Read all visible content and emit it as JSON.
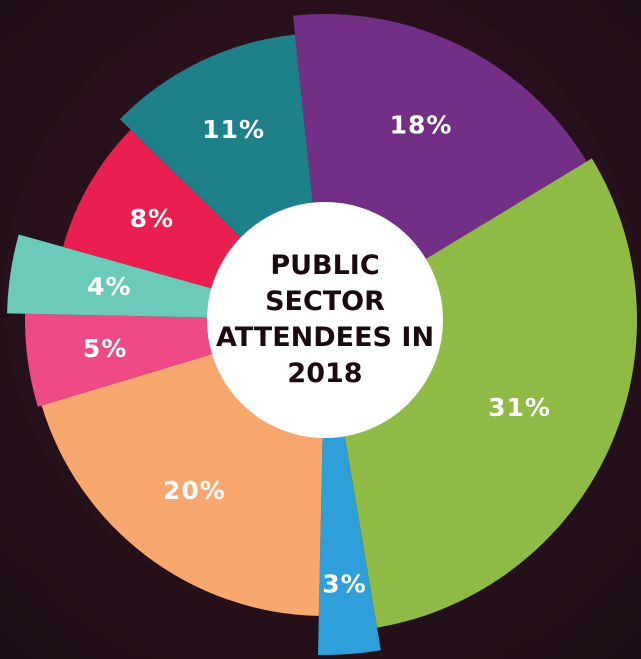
{
  "chart_data": {
    "type": "pie",
    "title": "PUBLIC SECTOR ATTENDEES IN 2018",
    "categories": [
      null,
      null,
      null,
      null,
      null,
      null,
      null,
      null
    ],
    "values": [
      18,
      31,
      3,
      20,
      5,
      4,
      8,
      11
    ],
    "value_labels": [
      "18%",
      "31%",
      "3%",
      "20%",
      "5%",
      "4%",
      "8%",
      "11%"
    ],
    "colors": [
      "#722f85",
      "#8fba45",
      "#2e9fd9",
      "#f8a76e",
      "#ee4a86",
      "#6ccabb",
      "#ea1e4f",
      "#1e8189"
    ]
  }
}
